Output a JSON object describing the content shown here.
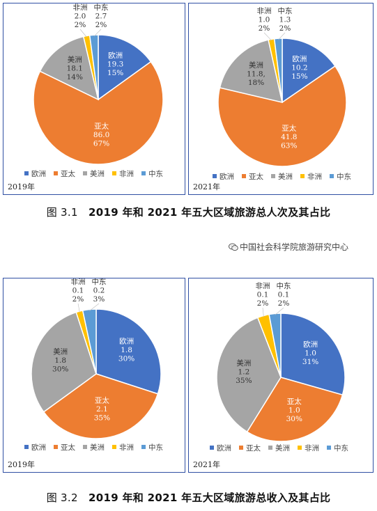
{
  "colors": {
    "欧洲": "#4472c4",
    "亚太": "#ed7d31",
    "美洲": "#a5a5a5",
    "非洲": "#ffc000",
    "中东": "#5b9bd5"
  },
  "captions": {
    "fig31_label": "图 3.1",
    "fig31_text": "2019 年和 2021 年五大区域旅游总人次及其占比",
    "fig32_label": "图 3.2",
    "fig32_text": "2019 年和 2021 年五大区域旅游总收入及其占比"
  },
  "watermark": {
    "icon": "wechat-icon",
    "text": "中国社会科学院旅游研究中心"
  },
  "chart_data": [
    {
      "type": "pie",
      "year_label": "2019年",
      "categories": [
        "欧洲",
        "亚太",
        "美洲",
        "非洲",
        "中东"
      ],
      "values": [
        19.3,
        86.0,
        18.1,
        2.0,
        2.7
      ],
      "value_labels": [
        "19.3",
        "86.0",
        "18.1",
        "2.0",
        "2.7"
      ],
      "percent_labels": [
        "15%",
        "67%",
        "14%",
        "2%",
        "2%"
      ],
      "legend": [
        "欧洲",
        "亚太",
        "美洲",
        "非洲",
        "中东"
      ],
      "legend_position": "bottom"
    },
    {
      "type": "pie",
      "year_label": "2021年",
      "categories": [
        "欧洲",
        "亚太",
        "美洲",
        "非洲",
        "中东"
      ],
      "values": [
        10.2,
        41.8,
        11.8,
        1.0,
        1.3
      ],
      "value_labels": [
        "10.2",
        "41.8",
        "11.8,",
        "1.0",
        "1.3"
      ],
      "percent_labels": [
        "15%",
        "63%",
        "18%",
        "2%",
        "2%"
      ],
      "legend": [
        "欧洲",
        "亚太",
        "美洲",
        "非洲",
        "中东"
      ],
      "legend_position": "bottom"
    },
    {
      "type": "pie",
      "year_label": "2019年",
      "categories": [
        "欧洲",
        "亚太",
        "美洲",
        "非洲",
        "中东"
      ],
      "values": [
        1.8,
        2.1,
        1.8,
        0.1,
        0.2
      ],
      "value_labels": [
        "1.8",
        "2.1",
        "1.8",
        "0.1",
        "0.2"
      ],
      "percent_labels": [
        "30%",
        "35%",
        "30%",
        "2%",
        "3%"
      ],
      "legend": [
        "欧洲",
        "亚太",
        "美洲",
        "非洲",
        "中东"
      ],
      "legend_position": "bottom"
    },
    {
      "type": "pie",
      "year_label": "2021年",
      "categories": [
        "欧洲",
        "亚太",
        "美洲",
        "非洲",
        "中东"
      ],
      "values": [
        1.0,
        1.0,
        1.2,
        0.1,
        0.1
      ],
      "value_labels": [
        "1.0",
        "1.0",
        "1.2",
        "0.1",
        "0.1"
      ],
      "percent_labels": [
        "31%",
        "30%",
        "35%",
        "2%",
        "2%"
      ],
      "legend": [
        "欧洲",
        "亚太",
        "美洲",
        "非洲",
        "中东"
      ],
      "legend_position": "bottom"
    }
  ]
}
